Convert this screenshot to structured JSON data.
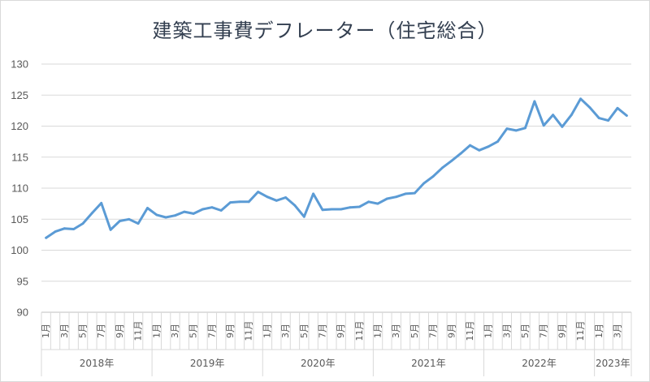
{
  "chart_data": {
    "type": "line",
    "title": "建築工事費デフレーター（住宅総合）",
    "ylim": [
      90,
      130
    ],
    "yticks": [
      90,
      95,
      100,
      105,
      110,
      115,
      120,
      125,
      130
    ],
    "grid": true,
    "month_labels": [
      "1月",
      "3月",
      "5月",
      "7月",
      "9月",
      "11月"
    ],
    "years": [
      {
        "label": "2018年",
        "months": 12
      },
      {
        "label": "2019年",
        "months": 12
      },
      {
        "label": "2020年",
        "months": 12
      },
      {
        "label": "2021年",
        "months": 12
      },
      {
        "label": "2022年",
        "months": 12
      },
      {
        "label": "2023年",
        "months": 4
      }
    ],
    "series": [
      {
        "color": "#5b9bd5",
        "values": [
          102.0,
          103.0,
          103.5,
          103.4,
          104.3,
          106.0,
          107.6,
          103.3,
          104.7,
          105.0,
          104.3,
          106.8,
          105.7,
          105.3,
          105.6,
          106.2,
          105.9,
          106.6,
          106.9,
          106.4,
          107.7,
          107.8,
          107.8,
          109.4,
          108.6,
          108.0,
          108.5,
          107.2,
          105.4,
          109.1,
          106.5,
          106.6,
          106.6,
          106.9,
          107.0,
          107.8,
          107.5,
          108.3,
          108.6,
          109.1,
          109.2,
          110.8,
          111.9,
          113.3,
          114.4,
          115.6,
          116.9,
          116.1,
          116.7,
          117.5,
          119.6,
          119.3,
          119.7,
          124.0,
          120.1,
          121.8,
          119.9,
          121.8,
          124.4,
          123.0,
          121.3,
          120.9,
          122.9,
          121.7
        ]
      }
    ]
  }
}
